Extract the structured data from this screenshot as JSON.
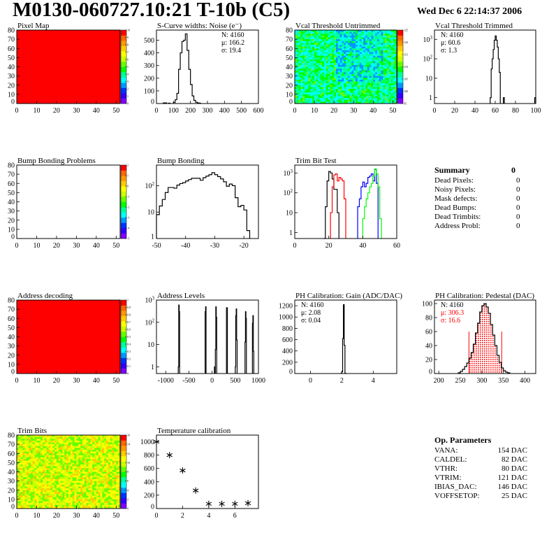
{
  "header": {
    "title": "M0130-060727.10:21 T-10b (C5)",
    "date": "Wed Dec  6 22:14:37 2006"
  },
  "colors": {
    "frame": "#000000",
    "red": "#ff0000",
    "blue": "#0000ff",
    "green": "#00ff00",
    "palette": [
      "#7f00ff",
      "#3300ff",
      "#0033ff",
      "#0099ff",
      "#00ffff",
      "#00ff99",
      "#00ff00",
      "#66ff00",
      "#ccff00",
      "#ffff00",
      "#ffcc00",
      "#ff9900",
      "#ff6600",
      "#ff0000"
    ]
  },
  "summary": {
    "title": "Summary",
    "total": "0",
    "items": [
      {
        "label": "Dead Pixels:",
        "value": "0"
      },
      {
        "label": "Noisy Pixels:",
        "value": "0"
      },
      {
        "label": "Mask defects:",
        "value": "0"
      },
      {
        "label": "Dead Bumps:",
        "value": "0"
      },
      {
        "label": "Dead Trimbits:",
        "value": "0"
      },
      {
        "label": "Address Probl:",
        "value": "0"
      }
    ]
  },
  "op_parameters": {
    "title": "Op. Parameters",
    "items": [
      {
        "label": "VANA:",
        "value": "154 DAC"
      },
      {
        "label": "CALDEL:",
        "value": "82 DAC"
      },
      {
        "label": "VTHR:",
        "value": "80 DAC"
      },
      {
        "label": "VTRIM:",
        "value": "121 DAC"
      },
      {
        "label": "IBIAS_DAC:",
        "value": "146 DAC"
      },
      {
        "label": "VOFFSETOP:",
        "value": "25 DAC"
      }
    ]
  },
  "chart_data": [
    {
      "id": "pixel_map",
      "type": "heatmap",
      "title": "Pixel Map",
      "xlim": [
        0,
        52
      ],
      "ylim": [
        0,
        80
      ],
      "xticks": [
        0,
        10,
        20,
        30,
        40,
        50
      ],
      "yticks": [
        0,
        10,
        20,
        30,
        40,
        50,
        60,
        70,
        80
      ],
      "zlim": [
        0,
        10
      ],
      "zticks": [
        "0",
        "1",
        "2",
        "3",
        "4",
        "5",
        "6",
        "7",
        "8",
        "9",
        "10"
      ],
      "fill": "uniform-max"
    },
    {
      "id": "scurve",
      "type": "bar",
      "title": "S-Curve widths: Noise (e⁻)",
      "xlim": [
        0,
        600
      ],
      "ylim": [
        0,
        580
      ],
      "xticks": [
        0,
        100,
        200,
        300,
        400,
        500,
        600
      ],
      "yticks": [
        0,
        100,
        200,
        300,
        400,
        500
      ],
      "bin_width": 10,
      "bins": [
        [
          40,
          5
        ],
        [
          50,
          5
        ],
        [
          70,
          3
        ],
        [
          100,
          8
        ],
        [
          110,
          30
        ],
        [
          120,
          80
        ],
        [
          130,
          270
        ],
        [
          140,
          400
        ],
        [
          150,
          490
        ],
        [
          160,
          500
        ],
        [
          170,
          550
        ],
        [
          180,
          420
        ],
        [
          190,
          270
        ],
        [
          200,
          150
        ],
        [
          210,
          60
        ],
        [
          220,
          25
        ],
        [
          230,
          10
        ],
        [
          240,
          5
        ],
        [
          250,
          3
        ]
      ],
      "stats": [
        "N: 4160",
        "μ: 166.2",
        "σ: 19.4"
      ],
      "stats_pos": "top-right"
    },
    {
      "id": "vcal_untrimmed",
      "type": "heatmap",
      "title": "Vcal Threshold Untrimmed",
      "xlim": [
        0,
        52
      ],
      "ylim": [
        0,
        80
      ],
      "xticks": [
        0,
        10,
        20,
        30,
        40,
        50
      ],
      "yticks": [
        0,
        10,
        20,
        30,
        40,
        50,
        60,
        70,
        80
      ],
      "zlim": [
        90,
        130
      ],
      "zticks": [
        "95",
        "100",
        "105",
        "110",
        "115",
        "120",
        "125"
      ],
      "fill": "mixed-cyan-green"
    },
    {
      "id": "vcal_trimmed",
      "type": "bar",
      "title": "Vcal Threshold Trimmed",
      "xlim": [
        0,
        100
      ],
      "ylim": [
        0.5,
        3000
      ],
      "ylog": true,
      "xticks": [
        0,
        20,
        40,
        60,
        80,
        100
      ],
      "yticks": [
        1,
        10,
        100,
        1000
      ],
      "bin_width": 1,
      "bins": [
        [
          55,
          1
        ],
        [
          56,
          30
        ],
        [
          57,
          100
        ],
        [
          58,
          300
        ],
        [
          59,
          900
        ],
        [
          60,
          1500
        ],
        [
          61,
          900
        ],
        [
          62,
          400
        ],
        [
          63,
          100
        ],
        [
          64,
          20
        ],
        [
          68,
          1
        ],
        [
          99,
          1
        ]
      ],
      "stats": [
        "N: 4160",
        "μ: 60.6",
        "σ:  1.3"
      ],
      "stats_pos": "top-left"
    },
    {
      "id": "bump_problems",
      "type": "heatmap",
      "title": "Bump Bonding Problems",
      "xlim": [
        0,
        52
      ],
      "ylim": [
        0,
        80
      ],
      "xticks": [
        0,
        10,
        20,
        30,
        40,
        50
      ],
      "yticks": [
        0,
        10,
        20,
        30,
        40,
        50,
        60,
        70,
        80
      ],
      "zlim": [
        -5,
        2
      ],
      "zticks": [
        "-5",
        "-4",
        "-3",
        "-2",
        "-1",
        "0",
        "1",
        "2"
      ],
      "fill": "empty"
    },
    {
      "id": "bump_bonding",
      "type": "bar",
      "title": "Bump Bonding",
      "xlim": [
        -50,
        -15
      ],
      "ylim": [
        1,
        600
      ],
      "ylog": true,
      "xticks": [
        -50,
        -40,
        -30,
        -20
      ],
      "yticks": [
        1,
        10,
        100
      ],
      "bin_width": 1,
      "bins": [
        [
          -50,
          8
        ],
        [
          -49,
          17
        ],
        [
          -48,
          30
        ],
        [
          -47,
          55
        ],
        [
          -46,
          85
        ],
        [
          -45,
          85
        ],
        [
          -44,
          80
        ],
        [
          -43,
          105
        ],
        [
          -42,
          120
        ],
        [
          -41,
          130
        ],
        [
          -40,
          150
        ],
        [
          -39,
          170
        ],
        [
          -38,
          190
        ],
        [
          -37,
          190
        ],
        [
          -36,
          190
        ],
        [
          -35,
          160
        ],
        [
          -34,
          200
        ],
        [
          -33,
          230
        ],
        [
          -32,
          260
        ],
        [
          -31,
          310
        ],
        [
          -30,
          260
        ],
        [
          -29,
          220
        ],
        [
          -28,
          180
        ],
        [
          -27,
          140
        ],
        [
          -26,
          95
        ],
        [
          -25,
          115
        ],
        [
          -24,
          100
        ],
        [
          -23,
          35
        ],
        [
          -22,
          16
        ],
        [
          -21,
          18
        ],
        [
          -20,
          12
        ],
        [
          -19,
          2
        ]
      ]
    },
    {
      "id": "trim_bit",
      "type": "bar",
      "title": "Trim Bit Test",
      "xlim": [
        0,
        60
      ],
      "ylim": [
        0.5,
        2500
      ],
      "ylog": true,
      "xticks": [
        0,
        20,
        40,
        60
      ],
      "yticks": [
        1,
        10,
        100,
        1000
      ],
      "bin_width": 1,
      "series": [
        {
          "color": "#000000",
          "bins": [
            [
              17,
              0.5
            ],
            [
              18,
              20
            ],
            [
              19,
              400
            ],
            [
              20,
              1200
            ],
            [
              21,
              1000
            ],
            [
              22,
              500
            ],
            [
              23,
              150
            ],
            [
              24,
              150
            ],
            [
              25,
              10
            ]
          ]
        },
        {
          "color": "#ff0000",
          "bins": [
            [
              21,
              10
            ],
            [
              22,
              200
            ],
            [
              23,
              800
            ],
            [
              24,
              900
            ],
            [
              25,
              400
            ],
            [
              26,
              600
            ],
            [
              27,
              500
            ],
            [
              28,
              400
            ],
            [
              29,
              50
            ]
          ]
        },
        {
          "color": "#0000ff",
          "bins": [
            [
              37,
              20
            ],
            [
              38,
              50
            ],
            [
              39,
              200
            ],
            [
              40,
              350
            ],
            [
              41,
              200
            ],
            [
              42,
              300
            ],
            [
              43,
              600
            ],
            [
              44,
              700
            ],
            [
              45,
              900
            ],
            [
              46,
              400
            ],
            [
              47,
              1500
            ],
            [
              48,
              300
            ]
          ]
        },
        {
          "color": "#00ff00",
          "bins": [
            [
              40,
              5
            ],
            [
              41,
              20
            ],
            [
              42,
              50
            ],
            [
              43,
              100
            ],
            [
              44,
              200
            ],
            [
              45,
              300
            ],
            [
              46,
              700
            ],
            [
              47,
              1600
            ],
            [
              48,
              900
            ],
            [
              49,
              200
            ],
            [
              50,
              5
            ]
          ]
        }
      ]
    },
    {
      "id": "address_decoding",
      "type": "heatmap",
      "title": "Address decoding",
      "xlim": [
        0,
        52
      ],
      "ylim": [
        0,
        80
      ],
      "xticks": [
        0,
        10,
        20,
        30,
        40,
        50
      ],
      "yticks": [
        0,
        10,
        20,
        30,
        40,
        50,
        60,
        70,
        80
      ],
      "zlim": [
        0,
        1
      ],
      "zticks": [
        "0",
        "0.1",
        "0.2",
        "0.3",
        "0.4",
        "0.5",
        "0.6",
        "0.7",
        "0.8",
        "0.9",
        "1"
      ],
      "fill": "uniform-max"
    },
    {
      "id": "address_levels",
      "type": "bar",
      "title": "Address Levels",
      "xlim": [
        -1200,
        1000
      ],
      "ylim": [
        0.5,
        1000
      ],
      "ylog": true,
      "xticks": [
        -1000,
        -500,
        0,
        500,
        1000
      ],
      "yticks": [
        1,
        10,
        100,
        1000
      ],
      "bin_width": 10,
      "bins": [
        [
          -730,
          1
        ],
        [
          -720,
          600
        ],
        [
          -710,
          300
        ],
        [
          -150,
          300
        ],
        [
          -140,
          500
        ],
        [
          50,
          1
        ],
        [
          70,
          6
        ],
        [
          80,
          500
        ],
        [
          90,
          170
        ],
        [
          310,
          450
        ],
        [
          320,
          450
        ],
        [
          500,
          1
        ],
        [
          510,
          200
        ],
        [
          520,
          400
        ],
        [
          530,
          16
        ],
        [
          710,
          13
        ],
        [
          720,
          300
        ],
        [
          730,
          150
        ],
        [
          870,
          90
        ],
        [
          880,
          200
        ],
        [
          890,
          5
        ]
      ]
    },
    {
      "id": "ph_gain",
      "type": "bar",
      "title": "PH Calibration: Gain (ADC/DAC)",
      "xlim": [
        -1,
        5.5
      ],
      "ylim": [
        0,
        1300
      ],
      "xticks": [
        0,
        2,
        4
      ],
      "yticks": [
        0,
        200,
        400,
        600,
        800,
        1000,
        1200
      ],
      "bin_width": 0.05,
      "bins": [
        [
          1.95,
          5
        ],
        [
          2.0,
          30
        ],
        [
          2.05,
          620
        ],
        [
          2.1,
          1220
        ],
        [
          2.15,
          500
        ],
        [
          2.2,
          5
        ]
      ],
      "stats": [
        "N: 4160",
        "μ: 2.08",
        "σ: 0.04"
      ],
      "stats_pos": "top-left"
    },
    {
      "id": "ph_pedestal",
      "type": "bar",
      "title": "PH Calibration: Pedestal (DAC)",
      "xlim": [
        190,
        425
      ],
      "ylim": [
        0,
        105
      ],
      "xticks": [
        200,
        250,
        300,
        350,
        400
      ],
      "yticks": [
        0,
        20,
        40,
        60,
        80,
        100
      ],
      "bin_width": 5,
      "bins": [
        [
          245,
          1
        ],
        [
          250,
          3
        ],
        [
          255,
          6
        ],
        [
          260,
          10
        ],
        [
          265,
          15
        ],
        [
          270,
          22
        ],
        [
          275,
          30
        ],
        [
          280,
          42
        ],
        [
          285,
          58
        ],
        [
          290,
          72
        ],
        [
          295,
          88
        ],
        [
          300,
          97
        ],
        [
          305,
          100
        ],
        [
          310,
          95
        ],
        [
          315,
          86
        ],
        [
          320,
          70
        ],
        [
          325,
          55
        ],
        [
          330,
          40
        ],
        [
          335,
          26
        ],
        [
          340,
          16
        ],
        [
          345,
          8
        ],
        [
          350,
          4
        ],
        [
          355,
          2
        ],
        [
          360,
          1
        ]
      ],
      "fit": {
        "range": [
          270,
          346
        ],
        "marker_height": 60,
        "color": "#ff0000"
      },
      "stats": [
        "N: 4160",
        "μ: 306.3",
        "σ: 16.6"
      ],
      "stats_colors": [
        "#000000",
        "#ff0000",
        "#ff0000"
      ],
      "stats_pos": "top-left"
    },
    {
      "id": "trim_bits",
      "type": "heatmap",
      "title": "Trim Bits",
      "xlim": [
        0,
        52
      ],
      "ylim": [
        0,
        80
      ],
      "xticks": [
        0,
        10,
        20,
        30,
        40,
        50
      ],
      "yticks": [
        0,
        10,
        20,
        30,
        40,
        50,
        60,
        70,
        80
      ],
      "zlim": [
        0,
        16
      ],
      "zticks": [
        "0",
        "2",
        "4",
        "6",
        "8",
        "10",
        "12",
        "14",
        "16"
      ],
      "fill": "mixed-green-yellow"
    },
    {
      "id": "temperature",
      "type": "scatter",
      "title": "Temperature calibration",
      "xlim": [
        0,
        7.8
      ],
      "ylim": [
        0,
        1100
      ],
      "xticks": [
        0,
        2,
        4,
        6
      ],
      "yticks": [
        0,
        200,
        400,
        600,
        800,
        1000
      ],
      "marker": "star",
      "x": [
        0,
        1,
        2,
        3,
        4,
        5,
        6,
        7
      ],
      "y": [
        1000,
        800,
        570,
        270,
        70,
        70,
        70,
        80
      ]
    }
  ]
}
